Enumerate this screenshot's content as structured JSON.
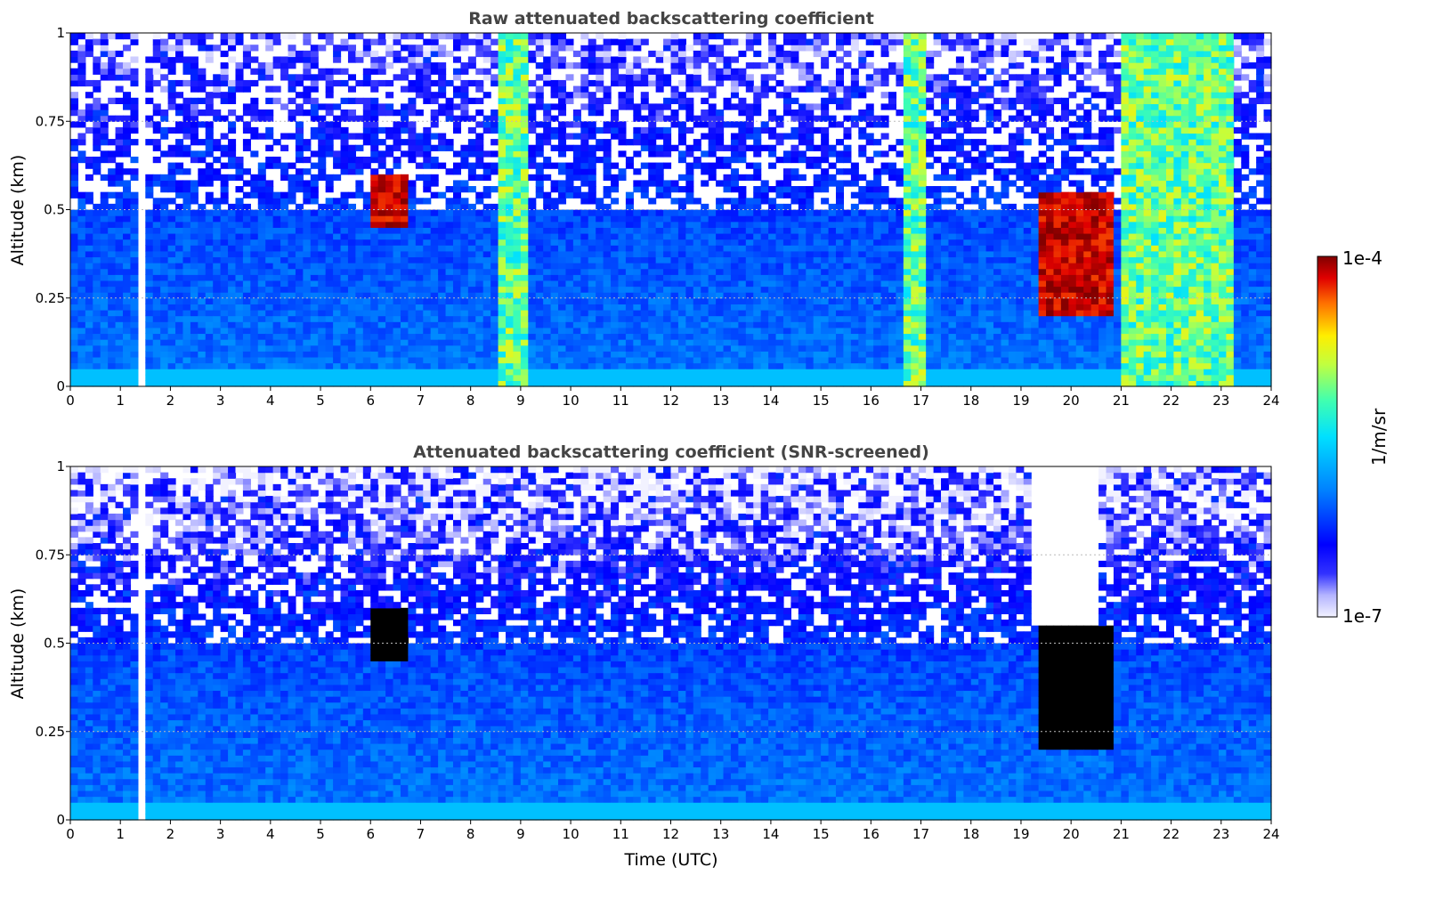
{
  "chart_data": [
    {
      "type": "heatmap",
      "title": "Raw attenuated backscattering coefficient",
      "xlabel": "",
      "ylabel": "Altitude (km)",
      "xlim": [
        0,
        24
      ],
      "ylim": [
        0,
        1
      ],
      "xticks": [
        "0",
        "1",
        "2",
        "3",
        "4",
        "5",
        "6",
        "7",
        "8",
        "9",
        "10",
        "11",
        "12",
        "13",
        "14",
        "15",
        "16",
        "17",
        "18",
        "19",
        "20",
        "21",
        "22",
        "23",
        "24"
      ],
      "yticks": [
        "0",
        "0.25",
        "0.5",
        "0.75",
        "1"
      ],
      "grid": true,
      "features": [
        {
          "kind": "cloud",
          "x": [
            6.0,
            6.7
          ],
          "y": [
            0.45,
            0.6
          ],
          "level": "high"
        },
        {
          "kind": "cloud",
          "x": [
            19.3,
            20.8
          ],
          "y": [
            0.2,
            0.55
          ],
          "level": "high"
        },
        {
          "kind": "precipitation_column",
          "x": [
            8.5,
            9.2
          ],
          "level": "medium"
        },
        {
          "kind": "precipitation_column",
          "x": [
            16.7,
            17.1
          ],
          "level": "medium"
        },
        {
          "kind": "precipitation_column",
          "x": [
            21.0,
            23.2
          ],
          "level": "medium"
        },
        {
          "kind": "data_gap",
          "x": [
            1.4,
            1.5
          ]
        }
      ]
    },
    {
      "type": "heatmap",
      "title": "Attenuated backscattering coefficient (SNR-screened)",
      "xlabel": "Time (UTC)",
      "ylabel": "Altitude (km)",
      "xlim": [
        0,
        24
      ],
      "ylim": [
        0,
        1
      ],
      "xticks": [
        "0",
        "1",
        "2",
        "3",
        "4",
        "5",
        "6",
        "7",
        "8",
        "9",
        "10",
        "11",
        "12",
        "13",
        "14",
        "15",
        "16",
        "17",
        "18",
        "19",
        "20",
        "21",
        "22",
        "23",
        "24"
      ],
      "yticks": [
        "0",
        "0.25",
        "0.5",
        "0.75",
        "1"
      ],
      "grid": true,
      "features": [
        {
          "kind": "cloud",
          "x": [
            6.0,
            6.7
          ],
          "y": [
            0.45,
            0.6
          ],
          "level": "saturated"
        },
        {
          "kind": "cloud",
          "x": [
            19.3,
            20.8
          ],
          "y": [
            0.2,
            0.55
          ],
          "level": "saturated"
        },
        {
          "kind": "clear_region",
          "x": [
            19.2,
            20.6
          ],
          "y": [
            0.55,
            1.0
          ]
        },
        {
          "kind": "data_gap",
          "x": [
            1.4,
            1.5
          ]
        }
      ]
    }
  ],
  "colorbar": {
    "max_label": "1e-4",
    "min_label": "1e-7",
    "unit": "1/m/sr",
    "colormap": "jet"
  }
}
